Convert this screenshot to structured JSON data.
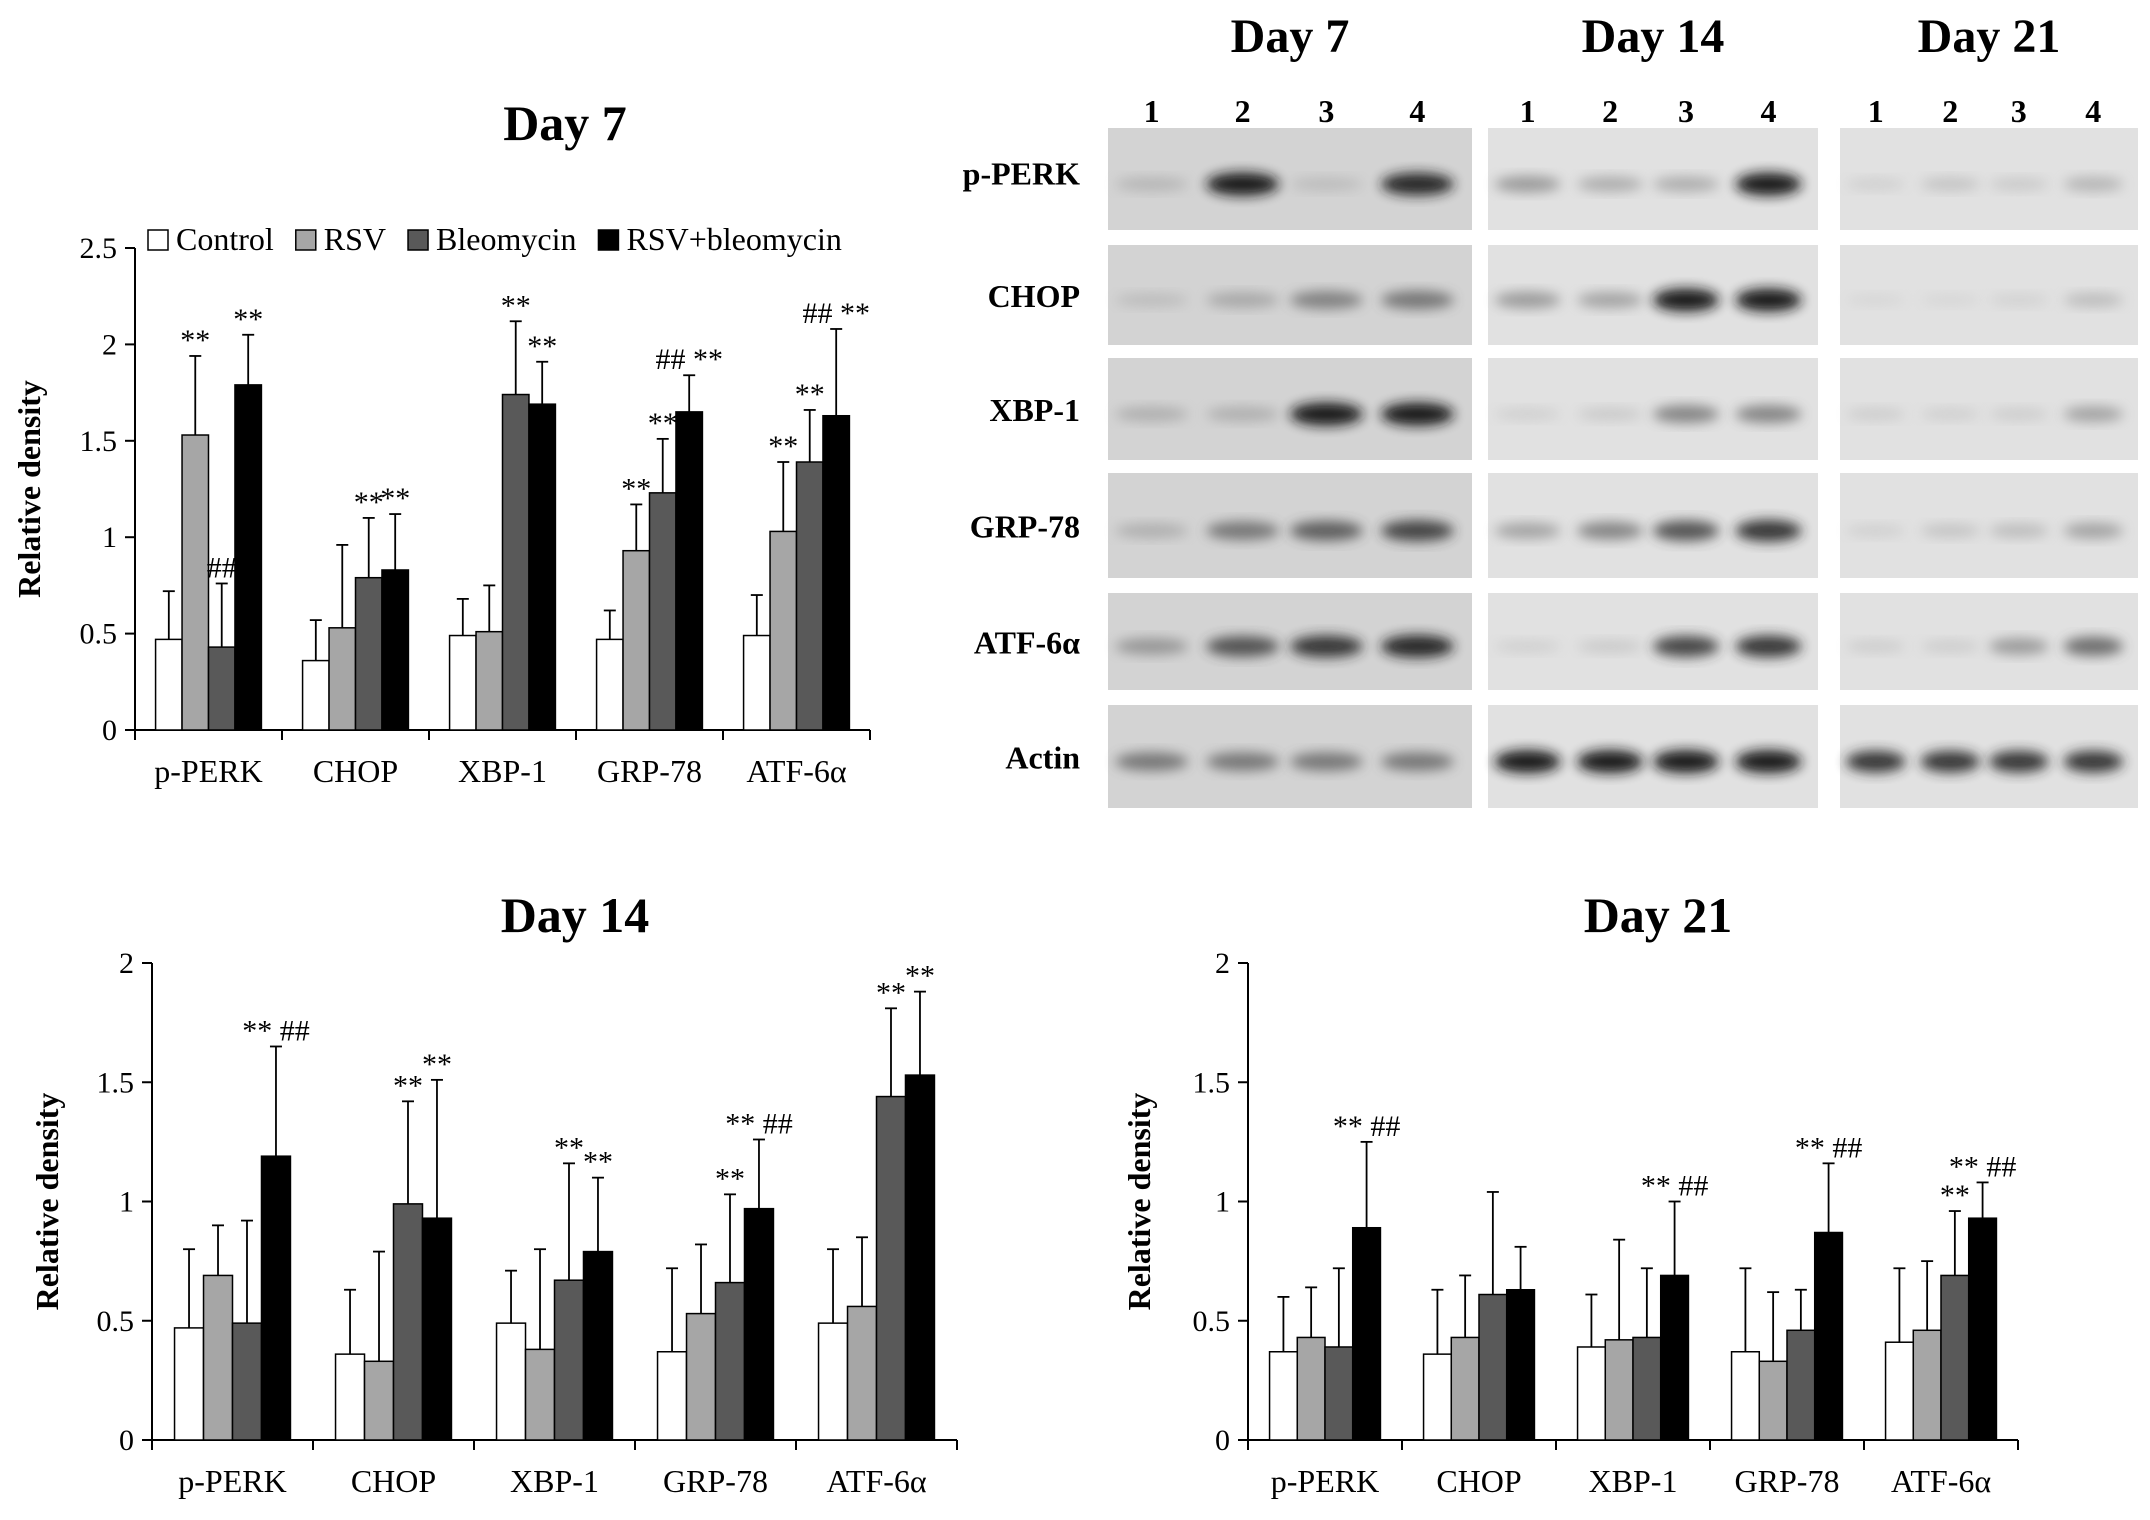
{
  "chart_data": [
    {
      "id": "day7",
      "type": "bar",
      "title": "Day 7",
      "ylabel": "Relative density",
      "ylim": [
        0,
        2.5
      ],
      "yticks": [
        "0",
        "0.5",
        "1",
        "1.5",
        "2",
        "2.5"
      ],
      "categories": [
        "p-PERK",
        "CHOP",
        "XBP-1",
        "GRP-78",
        "ATF-6α"
      ],
      "legend": [
        "Control",
        "RSV",
        "Bleomycin",
        "RSV+bleomycin"
      ],
      "legend_position": "top",
      "series": [
        {
          "name": "Control",
          "color": "#ffffff",
          "values": [
            0.47,
            0.36,
            0.49,
            0.47,
            0.49
          ],
          "errors": [
            0.25,
            0.21,
            0.19,
            0.15,
            0.21
          ]
        },
        {
          "name": "RSV",
          "color": "#a6a6a6",
          "values": [
            1.53,
            0.53,
            0.51,
            0.93,
            1.03
          ],
          "errors": [
            0.41,
            0.43,
            0.24,
            0.24,
            0.36
          ]
        },
        {
          "name": "Bleomycin",
          "color": "#595959",
          "values": [
            0.43,
            0.79,
            1.74,
            1.23,
            1.39
          ],
          "errors": [
            0.33,
            0.31,
            0.38,
            0.28,
            0.27
          ]
        },
        {
          "name": "RSV+bleomycin",
          "color": "#000000",
          "values": [
            1.79,
            0.83,
            1.69,
            1.65,
            1.63
          ],
          "errors": [
            0.26,
            0.29,
            0.22,
            0.19,
            0.45
          ]
        }
      ],
      "annotations": [
        {
          "category": 0,
          "series": 1,
          "text": "**"
        },
        {
          "category": 0,
          "series": 2,
          "text": "##"
        },
        {
          "category": 0,
          "series": 3,
          "text": "**"
        },
        {
          "category": 1,
          "series": 2,
          "text": "**"
        },
        {
          "category": 1,
          "series": 3,
          "text": "**"
        },
        {
          "category": 2,
          "series": 2,
          "text": "**"
        },
        {
          "category": 2,
          "series": 3,
          "text": "**"
        },
        {
          "category": 3,
          "series": 1,
          "text": "**"
        },
        {
          "category": 3,
          "series": 2,
          "text": "**"
        },
        {
          "category": 3,
          "series": 3,
          "text": "## **"
        },
        {
          "category": 4,
          "series": 1,
          "text": "**"
        },
        {
          "category": 4,
          "series": 2,
          "text": "**"
        },
        {
          "category": 4,
          "series": 3,
          "text": "## **"
        }
      ]
    },
    {
      "id": "day14",
      "type": "bar",
      "title": "Day 14",
      "ylabel": "Relative density",
      "ylim": [
        0,
        2
      ],
      "yticks": [
        "0",
        "0.5",
        "1",
        "1.5",
        "2"
      ],
      "categories": [
        "p-PERK",
        "CHOP",
        "XBP-1",
        "GRP-78",
        "ATF-6α"
      ],
      "series": [
        {
          "name": "Control",
          "color": "#ffffff",
          "values": [
            0.47,
            0.36,
            0.49,
            0.37,
            0.49
          ],
          "errors": [
            0.33,
            0.27,
            0.22,
            0.35,
            0.31
          ]
        },
        {
          "name": "RSV",
          "color": "#a6a6a6",
          "values": [
            0.69,
            0.33,
            0.38,
            0.53,
            0.56
          ],
          "errors": [
            0.21,
            0.46,
            0.42,
            0.29,
            0.29
          ]
        },
        {
          "name": "Bleomycin",
          "color": "#595959",
          "values": [
            0.49,
            0.99,
            0.67,
            0.66,
            1.44
          ],
          "errors": [
            0.43,
            0.43,
            0.49,
            0.37,
            0.37
          ]
        },
        {
          "name": "RSV+bleomycin",
          "color": "#000000",
          "values": [
            1.19,
            0.93,
            0.79,
            0.97,
            1.53
          ],
          "errors": [
            0.46,
            0.58,
            0.31,
            0.29,
            0.35
          ]
        }
      ],
      "annotations": [
        {
          "category": 0,
          "series": 3,
          "text": "** ##"
        },
        {
          "category": 1,
          "series": 2,
          "text": "**"
        },
        {
          "category": 1,
          "series": 3,
          "text": "**"
        },
        {
          "category": 2,
          "series": 2,
          "text": "**"
        },
        {
          "category": 2,
          "series": 3,
          "text": "**"
        },
        {
          "category": 3,
          "series": 2,
          "text": "**"
        },
        {
          "category": 3,
          "series": 3,
          "text": "** ##"
        },
        {
          "category": 4,
          "series": 2,
          "text": "**"
        },
        {
          "category": 4,
          "series": 3,
          "text": "**"
        }
      ]
    },
    {
      "id": "day21",
      "type": "bar",
      "title": "Day 21",
      "ylabel": "Relative density",
      "ylim": [
        0,
        2
      ],
      "yticks": [
        "0",
        "0.5",
        "1",
        "1.5",
        "2"
      ],
      "categories": [
        "p-PERK",
        "CHOP",
        "XBP-1",
        "GRP-78",
        "ATF-6α"
      ],
      "series": [
        {
          "name": "Control",
          "color": "#ffffff",
          "values": [
            0.37,
            0.36,
            0.39,
            0.37,
            0.41
          ],
          "errors": [
            0.23,
            0.27,
            0.22,
            0.35,
            0.31
          ]
        },
        {
          "name": "RSV",
          "color": "#a6a6a6",
          "values": [
            0.43,
            0.43,
            0.42,
            0.33,
            0.46
          ],
          "errors": [
            0.21,
            0.26,
            0.42,
            0.29,
            0.29
          ]
        },
        {
          "name": "Bleomycin",
          "color": "#595959",
          "values": [
            0.39,
            0.61,
            0.43,
            0.46,
            0.69
          ],
          "errors": [
            0.33,
            0.43,
            0.29,
            0.17,
            0.27
          ]
        },
        {
          "name": "RSV+bleomycin",
          "color": "#000000",
          "values": [
            0.89,
            0.63,
            0.69,
            0.87,
            0.93
          ],
          "errors": [
            0.36,
            0.18,
            0.31,
            0.29,
            0.15
          ]
        }
      ],
      "annotations": [
        {
          "category": 0,
          "series": 3,
          "text": "** ##"
        },
        {
          "category": 2,
          "series": 3,
          "text": "** ##"
        },
        {
          "category": 3,
          "series": 3,
          "text": "** ##"
        },
        {
          "category": 4,
          "series": 2,
          "text": "**"
        },
        {
          "category": 4,
          "series": 3,
          "text": "** ##"
        }
      ]
    }
  ],
  "western_blot": {
    "panels": [
      {
        "title": "Day 7",
        "lanes": [
          "1",
          "2",
          "3",
          "4"
        ]
      },
      {
        "title": "Day 14",
        "lanes": [
          "1",
          "2",
          "3",
          "4"
        ]
      },
      {
        "title": "Day 21",
        "lanes": [
          "1",
          "2",
          "3",
          "4"
        ]
      }
    ],
    "proteins": [
      "p-PERK",
      "CHOP",
      "XBP-1",
      "GRP-78",
      "ATF-6α",
      "Actin"
    ],
    "band_intensity": [
      [
        [
          0.25,
          0.95,
          0.2,
          0.9
        ],
        [
          0.45,
          0.35,
          0.35,
          0.95
        ],
        [
          0.1,
          0.2,
          0.15,
          0.3
        ]
      ],
      [
        [
          0.2,
          0.35,
          0.55,
          0.6
        ],
        [
          0.45,
          0.4,
          0.95,
          0.95
        ],
        [
          0.03,
          0.03,
          0.08,
          0.25
        ]
      ],
      [
        [
          0.3,
          0.3,
          0.95,
          0.95
        ],
        [
          0.1,
          0.15,
          0.55,
          0.55
        ],
        [
          0.12,
          0.1,
          0.12,
          0.4
        ]
      ],
      [
        [
          0.3,
          0.6,
          0.7,
          0.8
        ],
        [
          0.4,
          0.55,
          0.75,
          0.85
        ],
        [
          0.1,
          0.2,
          0.25,
          0.4
        ]
      ],
      [
        [
          0.45,
          0.75,
          0.85,
          0.9
        ],
        [
          0.1,
          0.15,
          0.8,
          0.85
        ],
        [
          0.12,
          0.12,
          0.45,
          0.65
        ]
      ],
      [
        [
          0.6,
          0.6,
          0.6,
          0.6
        ],
        [
          0.95,
          0.95,
          0.95,
          0.95
        ],
        [
          0.85,
          0.85,
          0.85,
          0.85
        ]
      ]
    ]
  }
}
